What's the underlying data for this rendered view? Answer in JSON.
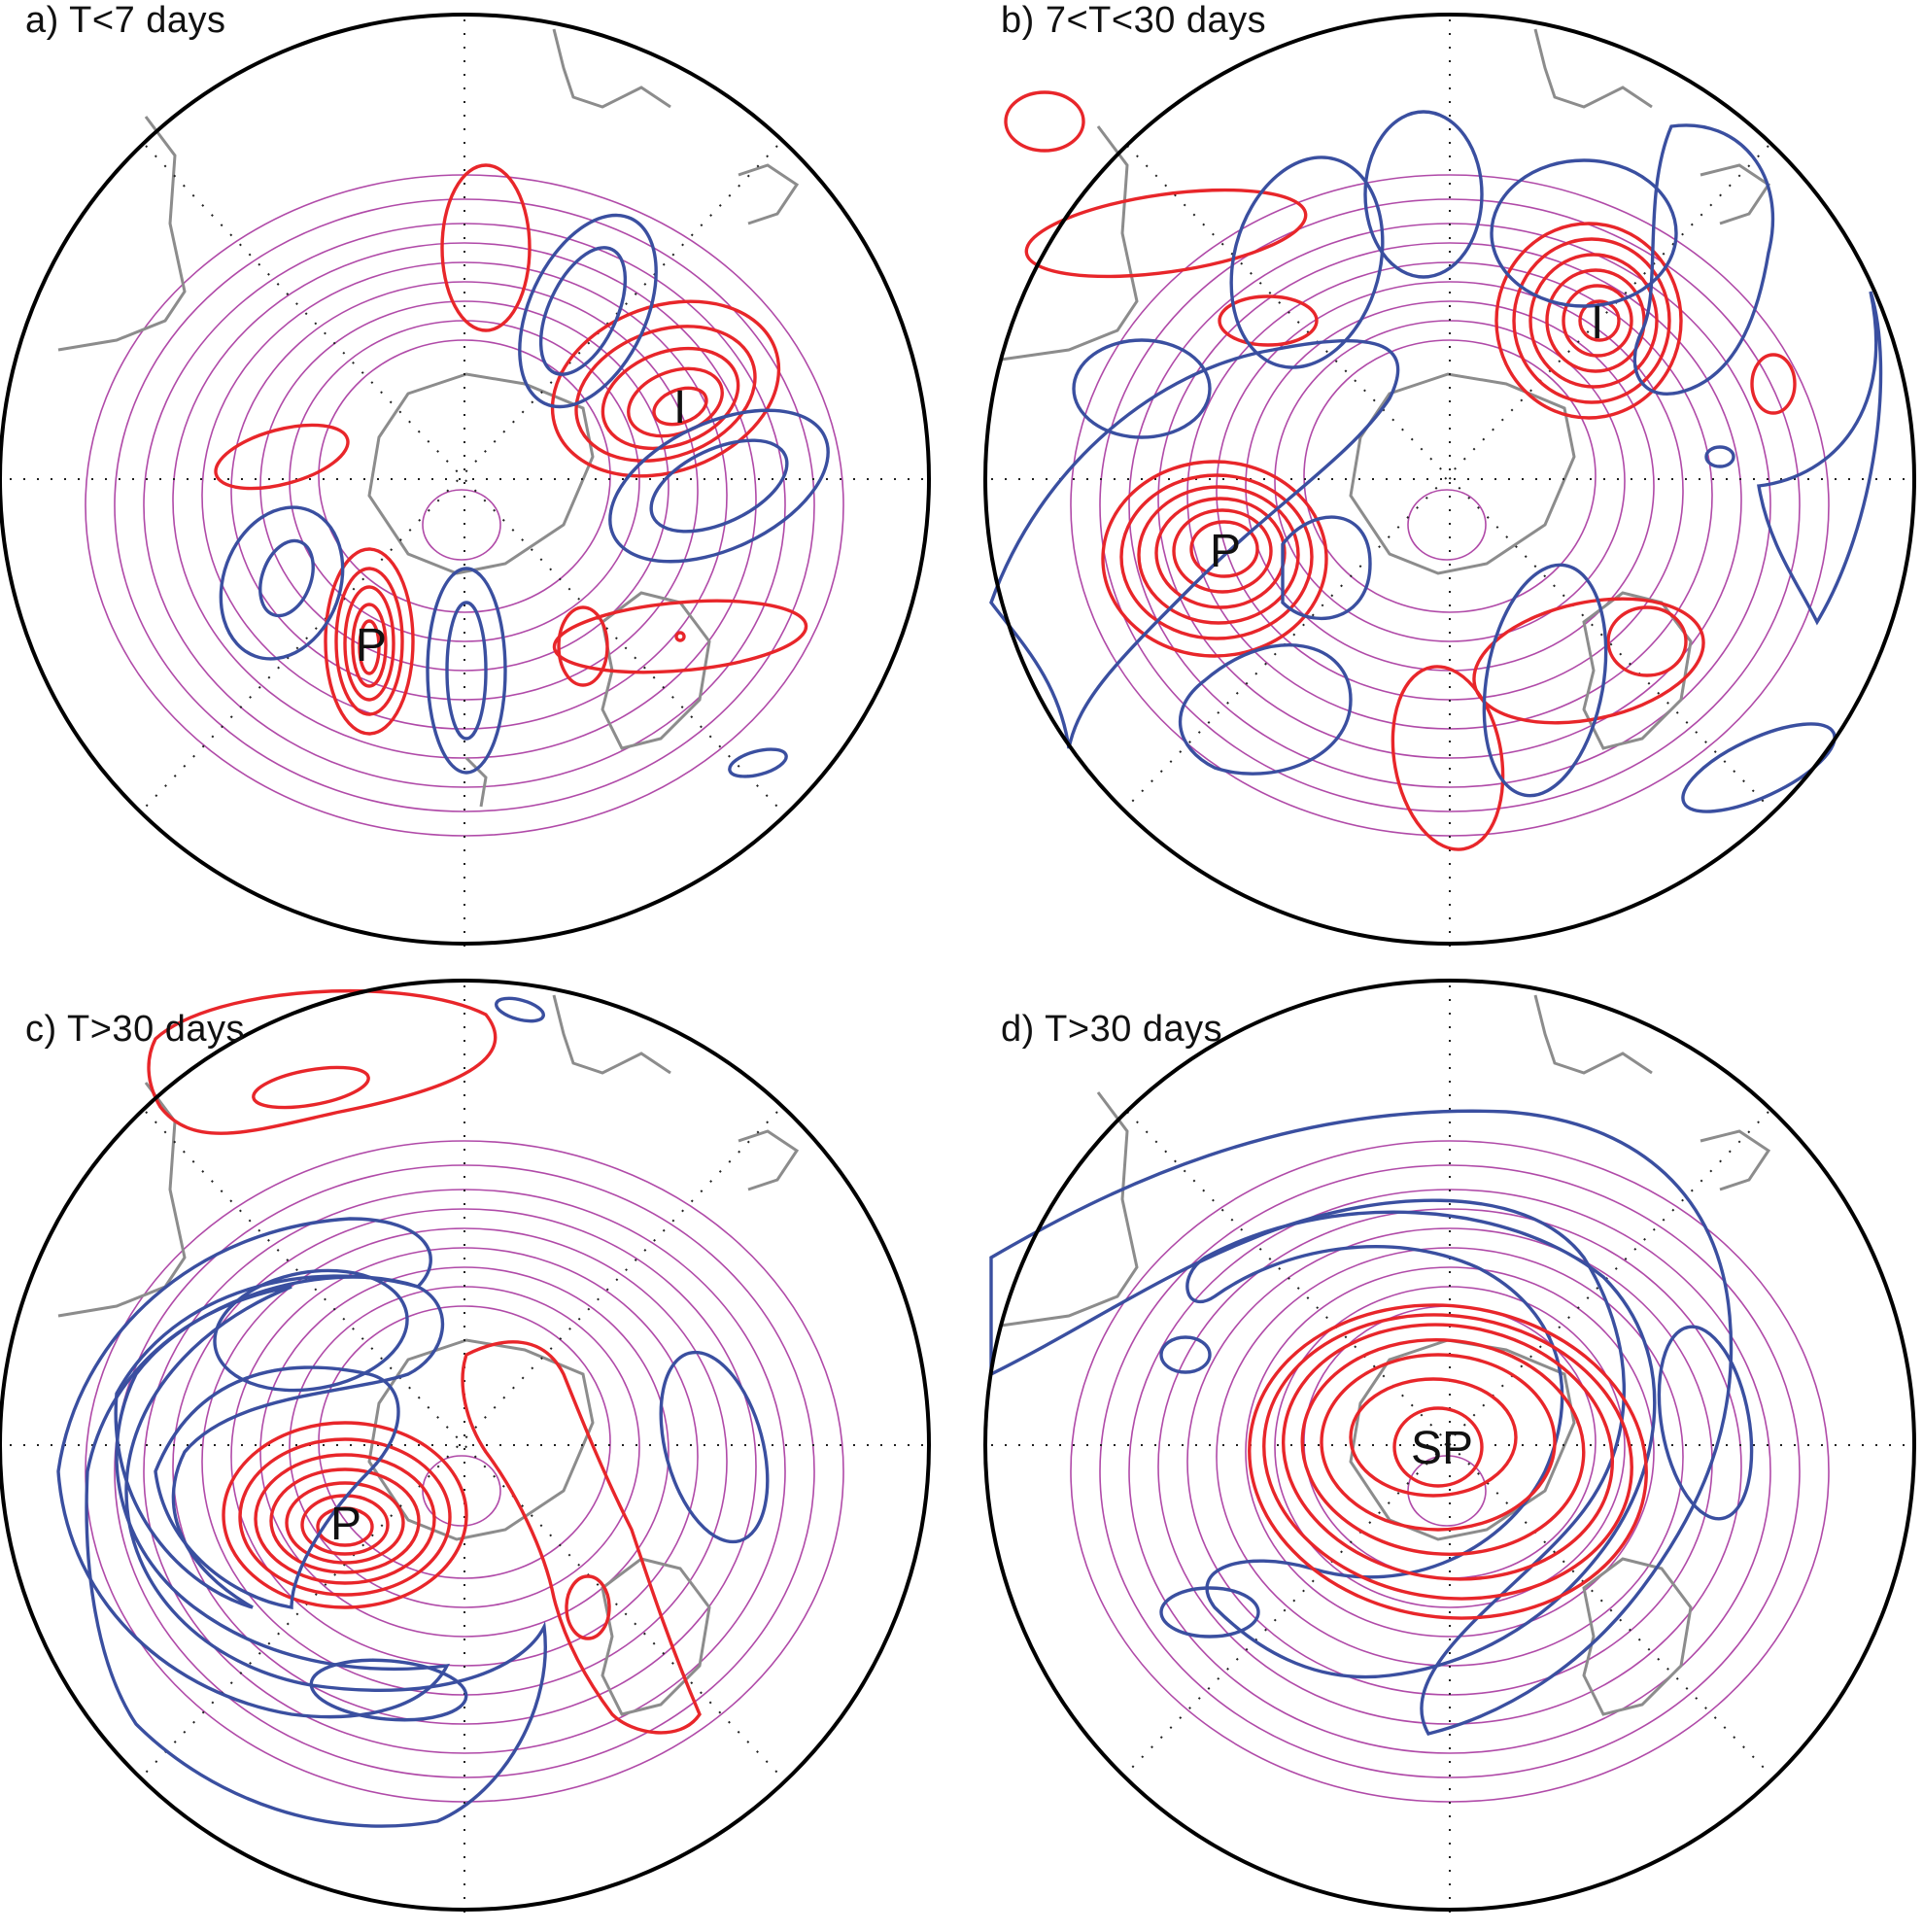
{
  "panels": [
    {
      "id": "a",
      "title": "a) T<7 days",
      "labels": [
        "P",
        "I"
      ]
    },
    {
      "id": "b",
      "title": "b) 7<T<30 days",
      "labels": [
        "P",
        "I"
      ]
    },
    {
      "id": "c",
      "title": "c) T>30 days",
      "labels": [
        "P"
      ]
    },
    {
      "id": "d",
      "title": "d) T>30 days",
      "labels": [
        "SP"
      ]
    }
  ],
  "colors": {
    "positive_contour": "#e8262a",
    "negative_contour": "#3a4fa0",
    "background_field": "#b04aa8",
    "coastline": "#8c8c8c",
    "frame": "#000000"
  }
}
